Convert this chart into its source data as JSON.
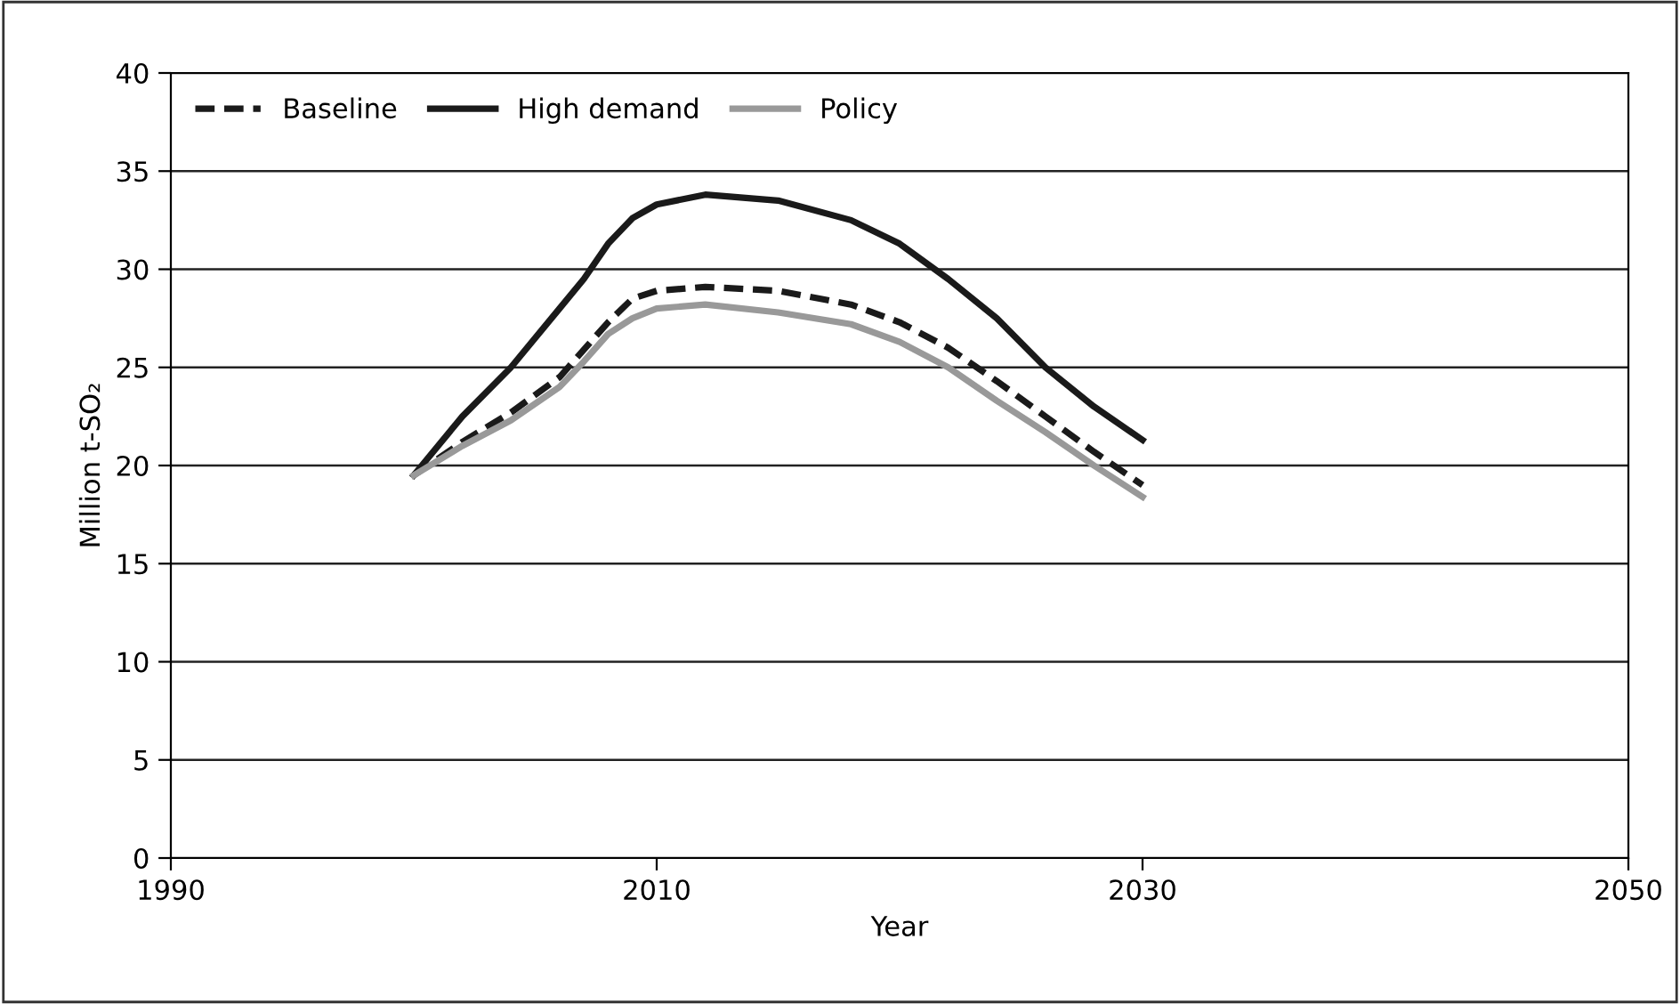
{
  "chart_data": {
    "type": "line",
    "xlabel": "Year",
    "ylabel": "Million t-SO₂",
    "xlim": [
      1990,
      2050
    ],
    "xticks": [
      1990,
      2010,
      2030,
      2050
    ],
    "ylim": [
      0,
      40
    ],
    "yticks": [
      0,
      5,
      10,
      15,
      20,
      25,
      30,
      35,
      40
    ],
    "grid": "y",
    "legend": "top left",
    "marker": "none",
    "x": [
      2000,
      2002,
      2004,
      2006,
      2007,
      2008,
      2009,
      2010,
      2012,
      2015,
      2018,
      2020,
      2022,
      2024,
      2026,
      2028,
      2030
    ],
    "series": [
      {
        "name": "Baseline",
        "color": "#1a1a1a",
        "line_style": "dashed",
        "values": [
          19.5,
          21.2,
          22.7,
          24.5,
          25.9,
          27.3,
          28.5,
          28.9,
          29.1,
          28.9,
          28.2,
          27.3,
          26.0,
          24.3,
          22.5,
          20.7,
          19.0
        ]
      },
      {
        "name": "High demand",
        "color": "#1a1a1a",
        "line_style": "solid",
        "values": [
          19.5,
          22.5,
          25.0,
          28.0,
          29.5,
          31.3,
          32.6,
          33.3,
          33.8,
          33.5,
          32.5,
          31.3,
          29.5,
          27.5,
          25.0,
          23.0,
          21.3
        ]
      },
      {
        "name": "Policy",
        "color": "#999999",
        "line_style": "solid",
        "values": [
          19.5,
          21.0,
          22.3,
          24.0,
          25.3,
          26.7,
          27.5,
          28.0,
          28.2,
          27.8,
          27.2,
          26.3,
          25.0,
          23.3,
          21.7,
          20.0,
          18.4
        ]
      }
    ]
  }
}
